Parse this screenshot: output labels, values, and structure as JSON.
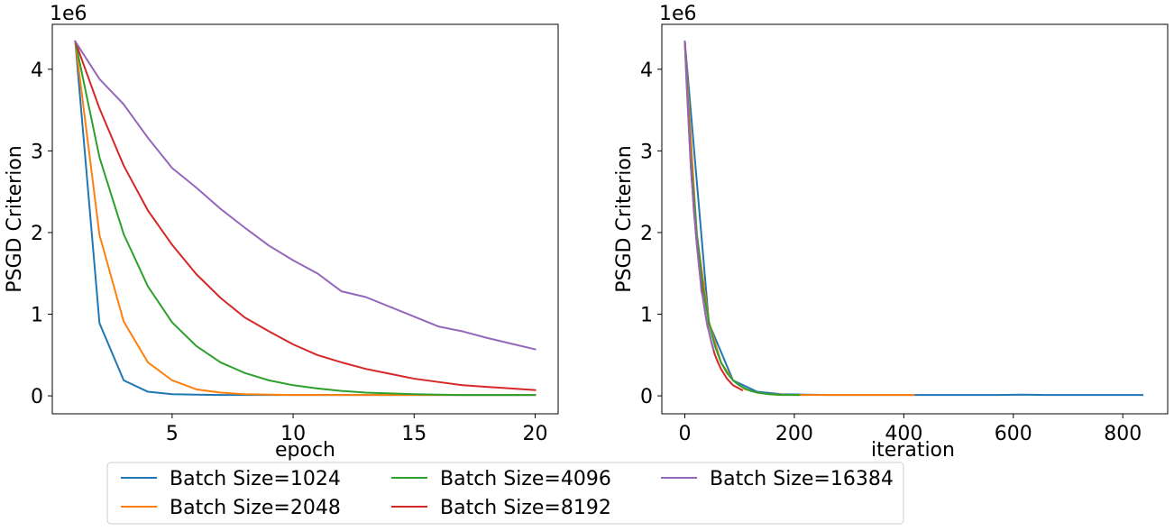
{
  "chart_data": [
    {
      "type": "line",
      "xlabel": "epoch",
      "ylabel": "PSGD Criterion",
      "y_offset_label": "1e6",
      "xlim": [
        0.05,
        20.95
      ],
      "ylim": [
        -0.22,
        4.55
      ],
      "y_scale_note": "values in units of 1e6",
      "x_ticks": [
        5,
        10,
        15,
        20
      ],
      "x_tick_labels": [
        "5",
        "10",
        "15",
        "20"
      ],
      "y_ticks": [
        0,
        1,
        2,
        3,
        4
      ],
      "y_tick_labels": [
        "0",
        "1",
        "2",
        "3",
        "4"
      ],
      "grid": false,
      "x": [
        1,
        2,
        3,
        4,
        5,
        6,
        7,
        8,
        9,
        10,
        11,
        12,
        13,
        14,
        15,
        16,
        17,
        18,
        19,
        20
      ],
      "series": [
        {
          "name": "Batch Size=1024",
          "color": "#1f77b4",
          "values": [
            4.34,
            0.89,
            0.19,
            0.05,
            0.02,
            0.015,
            0.01,
            0.01,
            0.01,
            0.01,
            0.01,
            0.01,
            0.01,
            0.01,
            0.01,
            0.01,
            0.01,
            0.01,
            0.01,
            0.01
          ]
        },
        {
          "name": "Batch Size=2048",
          "color": "#ff7f0e",
          "values": [
            4.34,
            1.97,
            0.91,
            0.41,
            0.19,
            0.08,
            0.04,
            0.02,
            0.015,
            0.01,
            0.01,
            0.01,
            0.01,
            0.01,
            0.01,
            0.01,
            0.01,
            0.01,
            0.01,
            0.01
          ]
        },
        {
          "name": "Batch Size=4096",
          "color": "#2ca02c",
          "values": [
            4.34,
            2.92,
            1.98,
            1.34,
            0.9,
            0.61,
            0.41,
            0.28,
            0.19,
            0.13,
            0.09,
            0.06,
            0.04,
            0.03,
            0.02,
            0.015,
            0.01,
            0.01,
            0.01,
            0.01
          ]
        },
        {
          "name": "Batch Size=8192",
          "color": "#d62728",
          "values": [
            4.34,
            3.52,
            2.82,
            2.27,
            1.85,
            1.49,
            1.2,
            0.96,
            0.79,
            0.63,
            0.5,
            0.41,
            0.33,
            0.27,
            0.21,
            0.17,
            0.13,
            0.11,
            0.09,
            0.07
          ]
        },
        {
          "name": "Batch Size=16384",
          "color": "#9467bd",
          "values": [
            4.34,
            3.88,
            3.57,
            3.16,
            2.79,
            2.55,
            2.29,
            2.06,
            1.84,
            1.66,
            1.5,
            1.28,
            1.21,
            1.09,
            0.97,
            0.85,
            0.79,
            0.71,
            0.64,
            0.57
          ]
        }
      ]
    },
    {
      "type": "line",
      "xlabel": "iteration",
      "ylabel": "PSGD Criterion",
      "y_offset_label": "1e6",
      "xlim": [
        -42,
        882
      ],
      "ylim": [
        -0.22,
        4.55
      ],
      "y_scale_note": "values in units of 1e6",
      "x_ticks": [
        0,
        200,
        400,
        600,
        800
      ],
      "x_tick_labels": [
        "0",
        "200",
        "400",
        "600",
        "800"
      ],
      "y_ticks": [
        0,
        1,
        2,
        3,
        4
      ],
      "y_tick_labels": [
        "0",
        "1",
        "2",
        "3",
        "4"
      ],
      "grid": false,
      "series": [
        {
          "name": "Batch Size=1024",
          "color": "#1f77b4",
          "x": [
            0,
            44,
            88,
            132,
            176,
            220,
            264,
            308,
            352,
            396,
            440,
            484,
            528,
            572,
            616,
            660,
            704,
            748,
            792,
            836
          ],
          "values": [
            4.34,
            0.89,
            0.19,
            0.05,
            0.02,
            0.015,
            0.01,
            0.01,
            0.01,
            0.01,
            0.01,
            0.01,
            0.01,
            0.01,
            0.015,
            0.01,
            0.01,
            0.01,
            0.01,
            0.01
          ]
        },
        {
          "name": "Batch Size=2048",
          "color": "#ff7f0e",
          "x": [
            0,
            22,
            44,
            66,
            88,
            110,
            132,
            154,
            176,
            198,
            220,
            242,
            264,
            286,
            308,
            330,
            352,
            374,
            396,
            418
          ],
          "values": [
            4.34,
            1.97,
            0.91,
            0.41,
            0.19,
            0.08,
            0.04,
            0.02,
            0.015,
            0.01,
            0.01,
            0.01,
            0.01,
            0.01,
            0.01,
            0.01,
            0.01,
            0.01,
            0.01,
            0.01
          ]
        },
        {
          "name": "Batch Size=4096",
          "color": "#2ca02c",
          "x": [
            0,
            11,
            22,
            33,
            44,
            55,
            66,
            77,
            88,
            99,
            110,
            121,
            132,
            143,
            154,
            165,
            176,
            187,
            198,
            209
          ],
          "values": [
            4.34,
            2.92,
            1.98,
            1.34,
            0.9,
            0.61,
            0.41,
            0.28,
            0.19,
            0.13,
            0.09,
            0.06,
            0.04,
            0.03,
            0.02,
            0.015,
            0.01,
            0.01,
            0.01,
            0.01
          ]
        },
        {
          "name": "Batch Size=8192",
          "color": "#d62728",
          "x": [
            0,
            5.5,
            11,
            16.5,
            22,
            27.5,
            33,
            38.5,
            44,
            49.5,
            55,
            60.5,
            66,
            71.5,
            77,
            82.5,
            88,
            93.5,
            99,
            104.5
          ],
          "values": [
            4.34,
            3.52,
            2.82,
            2.27,
            1.85,
            1.49,
            1.2,
            0.96,
            0.79,
            0.63,
            0.5,
            0.41,
            0.33,
            0.27,
            0.21,
            0.17,
            0.13,
            0.11,
            0.09,
            0.07
          ]
        },
        {
          "name": "Batch Size=16384",
          "color": "#9467bd",
          "x": [
            0,
            2.75,
            5.5,
            8.25,
            11,
            13.75,
            16.5,
            19.25,
            22,
            24.75,
            27.5,
            30.25,
            33,
            35.75,
            38.5,
            41.25,
            44,
            46.75,
            49.5,
            52.25
          ],
          "values": [
            4.34,
            3.88,
            3.57,
            3.16,
            2.79,
            2.55,
            2.29,
            2.06,
            1.84,
            1.66,
            1.5,
            1.28,
            1.21,
            1.09,
            0.97,
            0.85,
            0.79,
            0.71,
            0.64,
            0.57
          ]
        }
      ]
    }
  ],
  "legend": {
    "placement": "bottom-center",
    "columns": 3,
    "entries": [
      {
        "label": "Batch Size=1024",
        "color": "#1f77b4"
      },
      {
        "label": "Batch Size=2048",
        "color": "#ff7f0e"
      },
      {
        "label": "Batch Size=4096",
        "color": "#2ca02c"
      },
      {
        "label": "Batch Size=8192",
        "color": "#d62728"
      },
      {
        "label": "Batch Size=16384",
        "color": "#9467bd"
      }
    ]
  }
}
